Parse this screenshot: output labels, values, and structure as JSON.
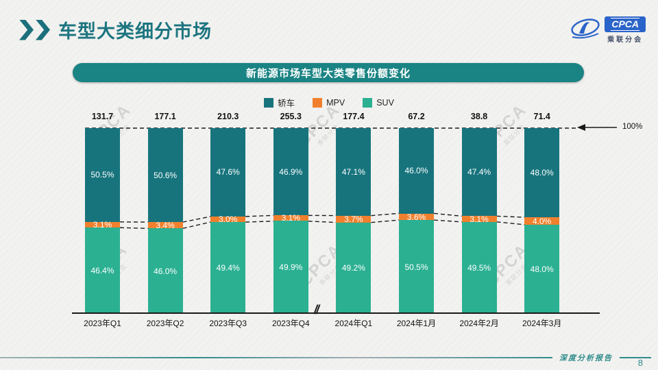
{
  "header": {
    "title": "车型大类细分市场",
    "logo": {
      "cpca": "CPCA",
      "org": "乘联分会"
    }
  },
  "banner": {
    "title": "新能源市场车型大类零售份额变化"
  },
  "chart_data": {
    "type": "bar",
    "stacked": true,
    "percent_stacked": true,
    "title": "新能源市场车型大类零售份额变化",
    "categories": [
      "2023年Q1",
      "2023年Q2",
      "2023年Q3",
      "2023年Q4",
      "2024年Q1",
      "2024年1月",
      "2024年2月",
      "2024年3月"
    ],
    "totals": [
      131.7,
      177.1,
      210.3,
      255.3,
      177.4,
      67.2,
      38.8,
      71.4
    ],
    "series": [
      {
        "name": "轿车",
        "color": "#17747D",
        "values": [
          50.5,
          50.6,
          47.6,
          46.9,
          47.1,
          46.0,
          47.4,
          48.0
        ]
      },
      {
        "name": "MPV",
        "color": "#F0802D",
        "values": [
          3.1,
          3.4,
          3.0,
          3.1,
          3.7,
          3.6,
          3.1,
          4.0
        ]
      },
      {
        "name": "SUV",
        "color": "#2BB092",
        "values": [
          46.4,
          46.0,
          49.4,
          49.9,
          49.2,
          50.5,
          49.5,
          48.0
        ]
      }
    ],
    "ylim": [
      0,
      100
    ],
    "unit": "%",
    "top_line_label": "100%",
    "axis_break": "//",
    "axis_break_after_index": 3,
    "legend_position": "top",
    "grid": false
  },
  "watermark": {
    "text": "CPCA",
    "subtext": "乘联分会"
  },
  "footer": {
    "report_label": "深度分析报告",
    "page_number": "8"
  },
  "colors": {
    "accent_teal": "#1D7580",
    "banner_teal": "#1A8383",
    "sedan": "#17747D",
    "mpv": "#F0802D",
    "suv": "#2BB092",
    "logo_blue": "#2A63C9",
    "footer_teal": "#2E8B8B"
  }
}
